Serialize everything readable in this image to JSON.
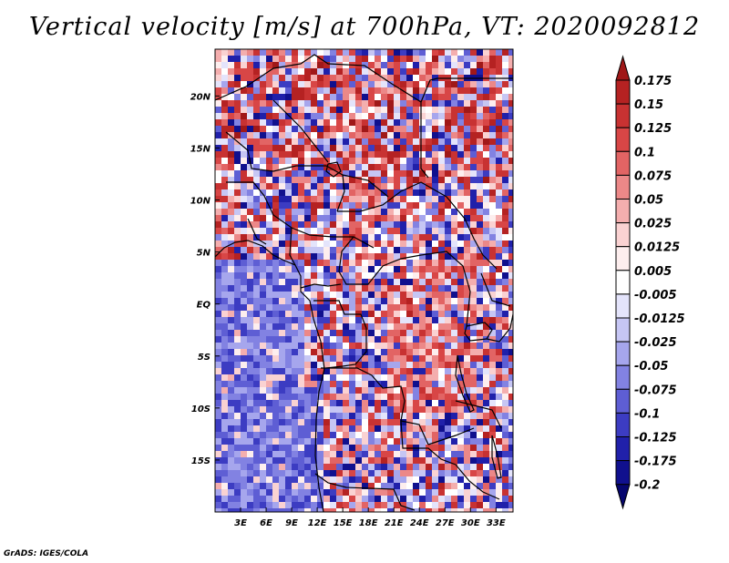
{
  "title": "Vertical velocity [m/s] at 700hPa, VT: 2020092812",
  "credit": "GrADS: IGES/COLA",
  "map": {
    "lon_range": [
      0,
      35
    ],
    "lat_range": [
      -20,
      24.5
    ],
    "x_ticks": [
      "3E",
      "6E",
      "9E",
      "12E",
      "15E",
      "18E",
      "21E",
      "24E",
      "27E",
      "30E",
      "33E"
    ],
    "y_ticks": [
      "20N",
      "15N",
      "10N",
      "5N",
      "EQ",
      "5S",
      "10S",
      "15S"
    ]
  },
  "colorbar": {
    "labels": [
      "0.175",
      "0.15",
      "0.125",
      "0.1",
      "0.075",
      "0.05",
      "0.025",
      "0.0125",
      "0.005",
      "-0.005",
      "-0.0125",
      "-0.025",
      "-0.05",
      "-0.075",
      "-0.1",
      "-0.125",
      "-0.175",
      "-0.2"
    ],
    "colors": [
      "#a01818",
      "#b52222",
      "#c83232",
      "#d84646",
      "#e26464",
      "#ec8888",
      "#f4aeae",
      "#fad2d2",
      "#fdeeee",
      "#ffffff",
      "#e4e4fb",
      "#c6c6f4",
      "#a6a6ed",
      "#8282e2",
      "#5e5ed4",
      "#3c3cc2",
      "#2020aa",
      "#10108e",
      "#06066e"
    ]
  }
}
